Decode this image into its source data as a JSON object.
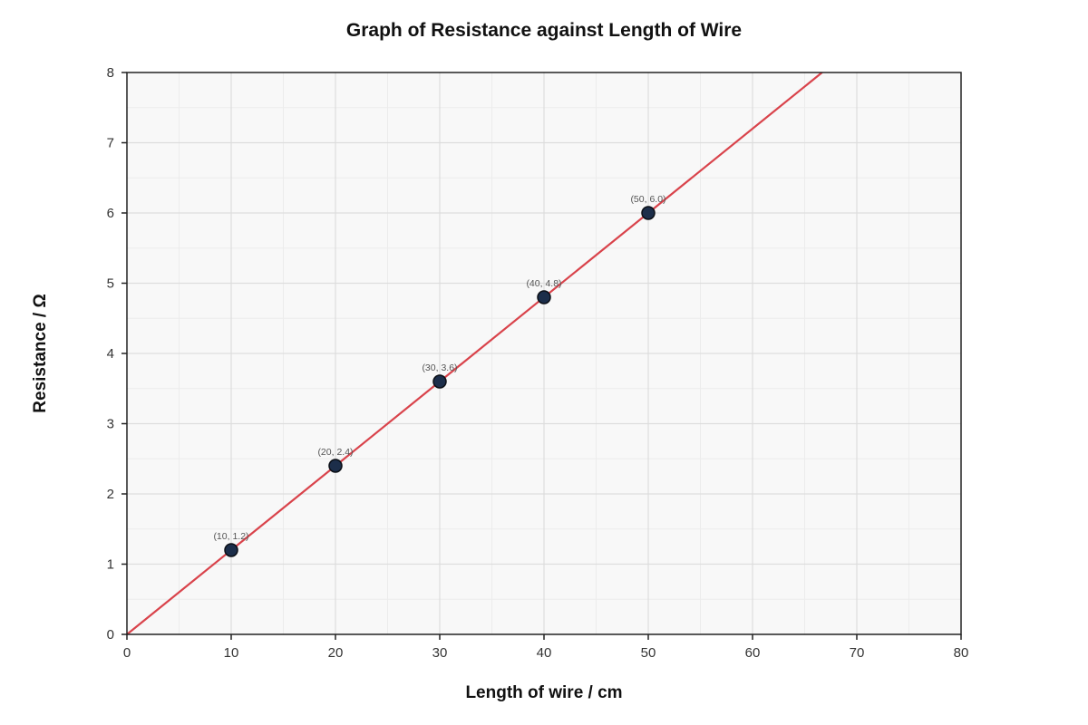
{
  "chart_data": {
    "type": "scatter",
    "title": "Graph of Resistance against Length of Wire",
    "xlabel": "Length of wire / cm",
    "ylabel": "Resistance / Ω",
    "xlim": [
      0,
      80
    ],
    "ylim": [
      0,
      8
    ],
    "x_ticks": [
      "0",
      "10",
      "20",
      "30",
      "40",
      "50",
      "60",
      "70",
      "80"
    ],
    "y_ticks": [
      "0",
      "1",
      "2",
      "3",
      "4",
      "5",
      "6",
      "7",
      "8"
    ],
    "grid": true,
    "legend": "none",
    "series": [
      {
        "x": [
          10,
          20,
          30,
          40,
          50
        ],
        "y": [
          1.2,
          2.4,
          3.6,
          4.8,
          6.0
        ],
        "point_labels": [
          "(10, 1.2)",
          "(20, 2.4)",
          "(30, 3.6)",
          "(40, 4.8)",
          "(50, 6.0)"
        ],
        "color": "#1c2e4a"
      }
    ],
    "best_fit_line": {
      "gradient": 0.12,
      "intercept": 0,
      "color": "#d9434b"
    },
    "colors": {
      "plot_background": "#f8f8f8",
      "major_grid": "#dddddd",
      "minor_grid": "#ececec",
      "axis": "#222222"
    }
  }
}
